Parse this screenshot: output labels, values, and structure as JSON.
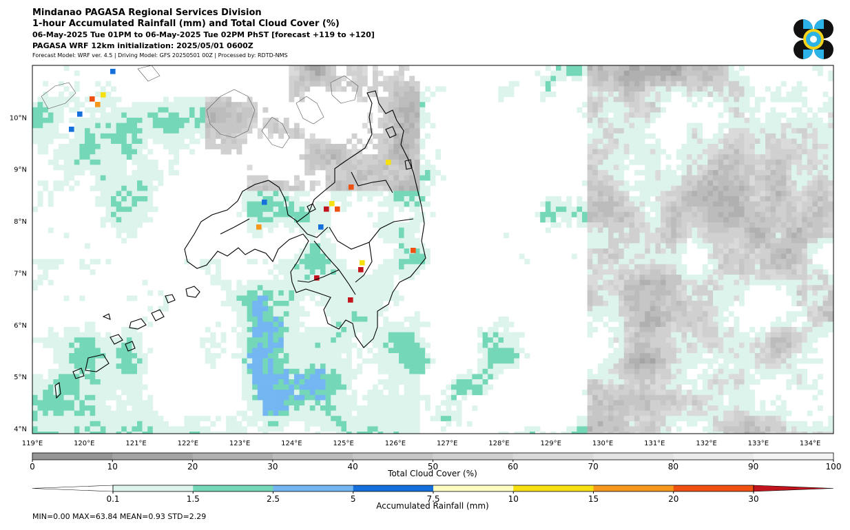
{
  "header": {
    "title": "Mindanao PAGASA Regional Services Division",
    "subtitle": "1-hour Accumulated Rainfall (mm) and Total Cloud Cover (%)",
    "valid_time": "06-May-2025 Tue 01PM to 06-May-2025 Tue 02PM PhST [forecast +119 to +120]",
    "initialization": "PAGASA WRF 12km initialization: 2025/05/01 0600Z",
    "model_info": "Forecast Model: WRF ver. 4.5 | Driving Model: GFS 20250501 00Z | Processed by: RDTD-NMS"
  },
  "map": {
    "lon_labels": [
      "119°E",
      "120°E",
      "121°E",
      "122°E",
      "123°E",
      "124°E",
      "125°E",
      "126°E",
      "127°E",
      "128°E",
      "129°E",
      "130°E",
      "131°E",
      "132°E",
      "133°E",
      "134°E"
    ],
    "lat_labels": [
      "10°N",
      "9°N",
      "8°N",
      "7°N",
      "6°N",
      "5°N",
      "4°N"
    ],
    "lon_values": [
      119,
      120,
      121,
      122,
      123,
      124,
      125,
      126,
      127,
      128,
      129,
      130,
      131,
      132,
      133,
      134
    ],
    "lat_values": [
      10,
      9,
      8,
      7,
      6,
      5,
      4
    ],
    "lon_range": [
      119,
      134.45
    ],
    "lat_range": [
      3.9,
      11.0
    ]
  },
  "cloud_colorbar": {
    "label": "Total Cloud Cover (%)",
    "ticks": [
      "0",
      "10",
      "20",
      "30",
      "40",
      "50",
      "60",
      "70",
      "80",
      "90",
      "100"
    ],
    "colors": [
      "#969696",
      "#a4a4a4",
      "#b0b0b0",
      "#bcbcbc",
      "#c6c6c6",
      "#d0d0d0",
      "#dadada",
      "#e3e3e3",
      "#ebebeb",
      "#f3f3f3"
    ]
  },
  "rain_colorbar": {
    "label": "Accumulated Rainfall (mm)",
    "ticks": [
      "0.1",
      "1.5",
      "2.5",
      "5",
      "7.5",
      "10",
      "15",
      "20",
      "30"
    ],
    "colors": [
      "#ddf4ec",
      "#74d7b8",
      "#73b6f2",
      "#1670dc",
      "#fefec2",
      "#f6e012",
      "#f5981c",
      "#ee5112"
    ],
    "under_color": "#ffffff",
    "over_color": "#c2141c"
  },
  "stats": "MIN=0.00   MAX=63.84   MEAN=0.93   STD=2.29"
}
